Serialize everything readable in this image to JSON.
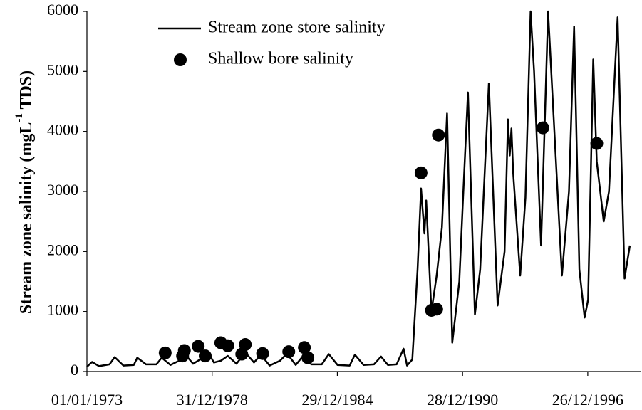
{
  "chart_data": {
    "type": "line",
    "y_label": [
      "Stream zone salinity (mgL",
      "-1",
      " TDS)"
    ],
    "xlim": [
      "1973-01-01",
      "1999-07-20"
    ],
    "xticks": [
      {
        "value": "1973-01-01",
        "label": "01/01/1973"
      },
      {
        "value": "1978-12-31",
        "label": "31/12/1978"
      },
      {
        "value": "1984-12-29",
        "label": "29/12/1984"
      },
      {
        "value": "1990-12-28",
        "label": "28/12/1990"
      },
      {
        "value": "1996-12-26",
        "label": "26/12/1996"
      }
    ],
    "ylim": [
      0,
      6000
    ],
    "yticks": [
      0,
      1000,
      2000,
      3000,
      4000,
      5000,
      6000
    ],
    "grid": false,
    "series": [
      {
        "name": "Stream zone store salinity",
        "kind": "line",
        "color": "#000000",
        "x": [
          "1973-01-01",
          "1973-04-01",
          "1973-08-01",
          "1974-02-01",
          "1974-05-01",
          "1974-10-01",
          "1975-04-01",
          "1975-06-01",
          "1975-11-01",
          "1976-05-01",
          "1976-08-01",
          "1977-01-01",
          "1977-06-01",
          "1977-09-01",
          "1978-02-01",
          "1978-06-01",
          "1978-10-01",
          "1979-02-01",
          "1979-06-01",
          "1979-10-01",
          "1980-03-01",
          "1980-08-01",
          "1981-01-01",
          "1981-05-01",
          "1981-10-01",
          "1982-04-01",
          "1982-08-01",
          "1983-01-01",
          "1983-05-01",
          "1983-10-01",
          "1984-04-01",
          "1984-08-01",
          "1985-01-01",
          "1985-08-01",
          "1985-11-01",
          "1986-04-01",
          "1986-10-01",
          "1987-02-01",
          "1987-06-01",
          "1987-11-01",
          "1988-03-01",
          "1988-05-01",
          "1988-08-01",
          "1988-11-01",
          "1989-01-01",
          "1989-03-01",
          "1989-04-01",
          "1989-05-01",
          "1989-07-01",
          "1989-10-01",
          "1990-01-01",
          "1990-04-01",
          "1990-07-01",
          "1990-11-01",
          "1991-01-01",
          "1991-04-01",
          "1991-08-01",
          "1991-11-01",
          "1992-04-01",
          "1992-09-01",
          "1993-01-01",
          "1993-03-01",
          "1993-04-01",
          "1993-05-01",
          "1993-06-01",
          "1993-10-01",
          "1994-01-01",
          "1994-04-01",
          "1994-06-01",
          "1994-10-01",
          "1995-02-01",
          "1995-10-01",
          "1996-02-01",
          "1996-05-01",
          "1996-08-01",
          "1996-11-01",
          "1997-01-01",
          "1997-04-01",
          "1997-06-01",
          "1997-10-01",
          "1998-01-01",
          "1998-06-01",
          "1998-10-01",
          "1999-01-01"
        ],
        "values": [
          80,
          160,
          90,
          120,
          240,
          100,
          110,
          230,
          120,
          120,
          230,
          110,
          180,
          300,
          130,
          200,
          350,
          150,
          180,
          260,
          130,
          320,
          150,
          280,
          100,
          180,
          300,
          110,
          250,
          120,
          120,
          290,
          110,
          100,
          280,
          110,
          120,
          250,
          110,
          120,
          380,
          100,
          200,
          1700,
          3050,
          2300,
          2850,
          2250,
          1000,
          1600,
          2400,
          4300,
          480,
          1500,
          2800,
          4650,
          950,
          1700,
          4800,
          1100,
          2000,
          4200,
          3600,
          4050,
          3300,
          1600,
          2900,
          6000,
          5000,
          2100,
          6000,
          1600,
          3000,
          5750,
          1700,
          900,
          1200,
          5200,
          3500,
          2500,
          3000,
          5900,
          1550,
          2100
        ]
      },
      {
        "name": "Shallow bore salinity",
        "kind": "scatter",
        "color": "#000000",
        "x": [
          "1976-10-01",
          "1977-08-01",
          "1977-09-01",
          "1978-05-01",
          "1978-09-01",
          "1979-06-01",
          "1979-10-01",
          "1980-06-01",
          "1980-08-01",
          "1981-06-01",
          "1982-09-01",
          "1983-06-01",
          "1983-08-01",
          "1989-01-01",
          "1989-07-01",
          "1989-10-01",
          "1989-11-01",
          "1994-11-01",
          "1997-06-01"
        ],
        "values": [
          310,
          260,
          350,
          420,
          260,
          480,
          430,
          290,
          450,
          300,
          330,
          400,
          230,
          3310,
          1020,
          1040,
          3940,
          4060,
          3800
        ]
      }
    ]
  }
}
